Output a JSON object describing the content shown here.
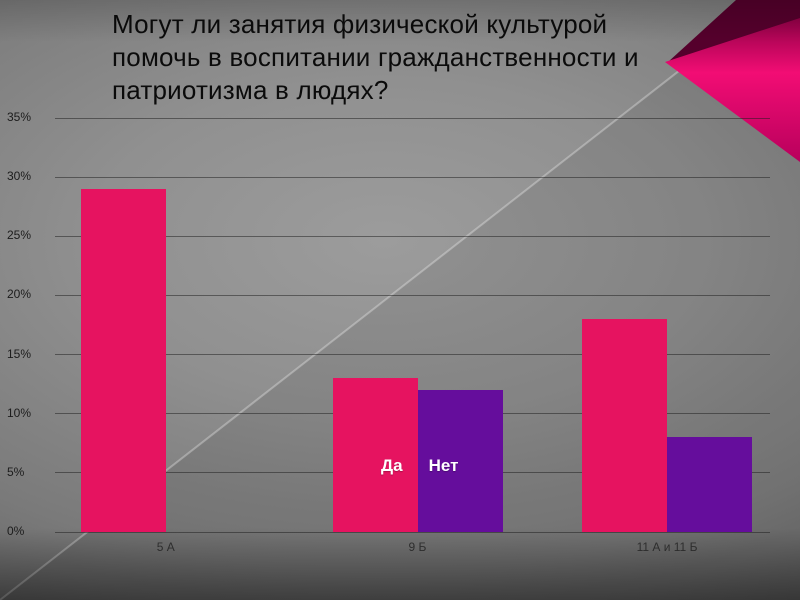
{
  "slide": {
    "title": "Могут ли занятия физической культурой помочь в воспитании гражданственности и патриотизма в людях?",
    "title_lines": [
      "Могут ли занятия физической культурой",
      "помочь в воспитании гражданственности и",
      "патриотизма в людях?"
    ]
  },
  "chart_data": {
    "type": "bar",
    "title": "Могут ли занятия физической культурой помочь в воспитании гражданственности и патриотизма в людях?",
    "categories": [
      "5 А",
      "9 Б",
      "11 А и 11 Б"
    ],
    "series": [
      {
        "name": "Да",
        "color": "#e61360",
        "values": [
          29,
          13,
          18
        ]
      },
      {
        "name": "Нет",
        "color": "#650d9c",
        "values": [
          null,
          12,
          8
        ]
      }
    ],
    "xlabel": "",
    "ylabel": "",
    "ylim": [
      0,
      35
    ],
    "ytick_step": 5,
    "ytick_labels": [
      "0%",
      "5%",
      "10%",
      "15%",
      "20%",
      "25%",
      "30%",
      "35%"
    ],
    "grid": true,
    "legend": [
      "Да",
      "Нет"
    ],
    "legend_position": "inside-bottom-center"
  },
  "decor": {
    "corner_accent_top": "#55002c",
    "corner_accent_dark": "#8f0046",
    "corner_accent_bright": "#f20d74",
    "corner_accent_bottom": "#b8005c",
    "background_base": "#8e8e8e"
  }
}
